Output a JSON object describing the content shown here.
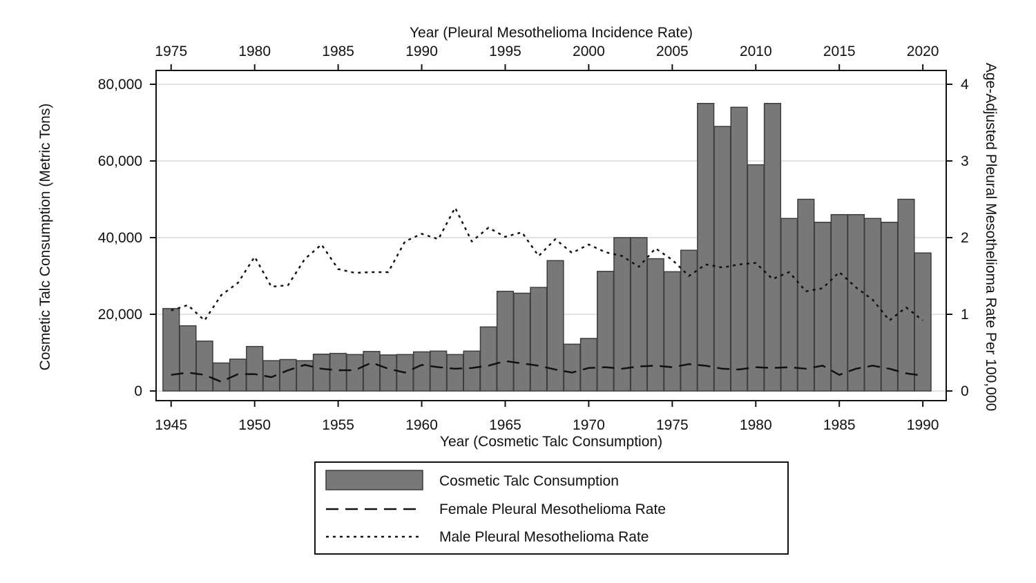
{
  "chart_data": {
    "type": "bar",
    "bottom_axis": {
      "label": "Year (Cosmetic Talc Consumption)",
      "range": [
        1944.1,
        1991.4
      ],
      "ticks": [
        1945,
        1950,
        1955,
        1960,
        1965,
        1970,
        1975,
        1980,
        1985,
        1990
      ]
    },
    "top_axis": {
      "label": "Year (Pleural Mesothelioma Incidence Rate)",
      "range": [
        1974.1,
        2021.4
      ],
      "ticks": [
        1975,
        1980,
        1985,
        1990,
        1995,
        2000,
        2005,
        2010,
        2015,
        2020
      ]
    },
    "left_axis": {
      "label": "Cosmetic Talc Consumption (Metric Tons)",
      "range": [
        0,
        80000
      ],
      "ticks": [
        0,
        20000,
        40000,
        60000,
        80000
      ],
      "tick_labels": [
        "0",
        "20,000",
        "40,000",
        "60,000",
        "80,000"
      ]
    },
    "right_axis": {
      "label": "Age-Adjusted Pleural Mesothelioma Rate Per 100,000",
      "range": [
        0,
        4
      ],
      "ticks": [
        0,
        1,
        2,
        3,
        4
      ],
      "tick_labels": [
        "0",
        "1",
        "2",
        "3",
        "4"
      ]
    },
    "gridlines": true,
    "bars": {
      "name": "Cosmetic Talc Consumption",
      "color": "#787878",
      "x": [
        1945,
        1946,
        1947,
        1948,
        1949,
        1950,
        1951,
        1952,
        1953,
        1954,
        1955,
        1956,
        1957,
        1958,
        1959,
        1960,
        1961,
        1962,
        1963,
        1964,
        1965,
        1966,
        1967,
        1968,
        1969,
        1970,
        1971,
        1972,
        1973,
        1974,
        1975,
        1976,
        1977,
        1978,
        1979,
        1980,
        1981,
        1982,
        1983,
        1984,
        1985,
        1986,
        1987,
        1988,
        1989,
        1990
      ],
      "values": [
        21500,
        17000,
        13000,
        7300,
        8300,
        11600,
        7900,
        8200,
        7900,
        9600,
        9800,
        9500,
        10300,
        9400,
        9500,
        10200,
        10400,
        9500,
        10400,
        16700,
        26000,
        25500,
        27000,
        34000,
        12200,
        13700,
        31200,
        40000,
        40000,
        34500,
        31100,
        36700,
        75000,
        69000,
        74000,
        59000,
        75000,
        45000,
        50000,
        44000,
        46000,
        46000,
        45000,
        44000,
        50000,
        36000
      ]
    },
    "series": [
      {
        "name": "Female Pleural Mesothelioma Rate",
        "style": "dashed",
        "x": [
          1975,
          1976,
          1977,
          1978,
          1979,
          1980,
          1981,
          1982,
          1983,
          1984,
          1985,
          1986,
          1987,
          1988,
          1989,
          1990,
          1991,
          1992,
          1993,
          1994,
          1995,
          1996,
          1997,
          1998,
          1999,
          2000,
          2001,
          2002,
          2003,
          2004,
          2005,
          2006,
          2007,
          2008,
          2009,
          2010,
          2011,
          2012,
          2013,
          2014,
          2015,
          2016,
          2017,
          2018,
          2019,
          2020
        ],
        "values": [
          0.21,
          0.24,
          0.21,
          0.12,
          0.22,
          0.22,
          0.18,
          0.27,
          0.34,
          0.29,
          0.27,
          0.27,
          0.37,
          0.29,
          0.24,
          0.34,
          0.31,
          0.29,
          0.3,
          0.33,
          0.39,
          0.36,
          0.33,
          0.28,
          0.24,
          0.3,
          0.31,
          0.29,
          0.32,
          0.33,
          0.31,
          0.35,
          0.33,
          0.29,
          0.28,
          0.31,
          0.3,
          0.31,
          0.29,
          0.33,
          0.21,
          0.29,
          0.33,
          0.29,
          0.23,
          0.2
        ]
      },
      {
        "name": "Male Pleural Mesothelioma Rate",
        "style": "dotted",
        "x": [
          1975,
          1976,
          1977,
          1978,
          1979,
          1980,
          1981,
          1982,
          1983,
          1984,
          1985,
          1986,
          1987,
          1988,
          1989,
          1990,
          1991,
          1992,
          1993,
          1994,
          1995,
          1996,
          1997,
          1998,
          1999,
          2000,
          2001,
          2002,
          2003,
          2004,
          2005,
          2006,
          2007,
          2008,
          2009,
          2010,
          2011,
          2012,
          2013,
          2014,
          2015,
          2016,
          2017,
          2018,
          2019,
          2020
        ],
        "values": [
          1.05,
          1.12,
          0.92,
          1.25,
          1.41,
          1.75,
          1.36,
          1.38,
          1.72,
          1.91,
          1.59,
          1.54,
          1.55,
          1.55,
          1.95,
          2.05,
          1.98,
          2.39,
          1.95,
          2.13,
          2.01,
          2.07,
          1.76,
          1.98,
          1.8,
          1.91,
          1.81,
          1.76,
          1.62,
          1.86,
          1.71,
          1.5,
          1.65,
          1.61,
          1.65,
          1.67,
          1.46,
          1.55,
          1.3,
          1.34,
          1.55,
          1.35,
          1.19,
          0.92,
          1.09,
          0.92
        ]
      }
    ],
    "legend": {
      "position": "bottom-center",
      "items": [
        {
          "label": "Cosmetic Talc Consumption",
          "kind": "bar"
        },
        {
          "label": "Female Pleural Mesothelioma Rate",
          "kind": "dashed"
        },
        {
          "label": "Male Pleural Mesothelioma Rate",
          "kind": "dotted"
        }
      ]
    },
    "colors": {
      "bar_fill": "#787878",
      "bar_stroke": "#3c3c3c",
      "grid": "#e3e3e3",
      "line": "#111111"
    }
  }
}
